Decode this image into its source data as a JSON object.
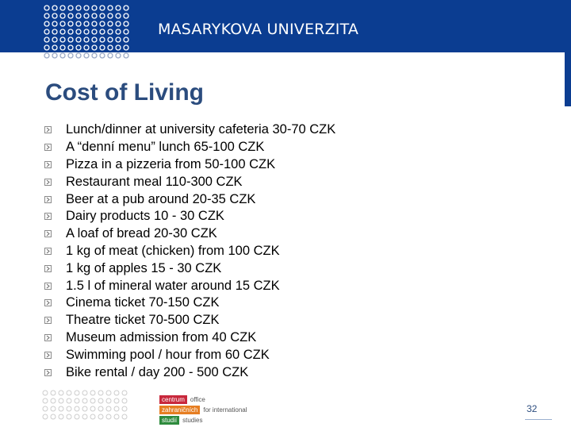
{
  "header": {
    "brand": "MASARYKOVA UNIVERZITA",
    "accent_color": "#0b3d91"
  },
  "title": "Cost of Living",
  "items": [
    "Lunch/dinner at university cafeteria 30-70 CZK",
    "A “denní menu” lunch 65-100 CZK",
    "Pizza in a pizzeria from 50-100 CZK",
    "Restaurant meal 110-300 CZK",
    "Beer at a pub around 20-35 CZK",
    "Dairy products 10 - 30 CZK",
    "A loaf of bread 20-30 CZK",
    "1 kg of meat (chicken) from 100 CZK",
    "1 kg of apples 15 - 30 CZK",
    "1.5 l of mineral water around 15 CZK",
    "Cinema ticket 70-150 CZK",
    "Theatre ticket 70-500 CZK",
    "Museum admission from 40 CZK",
    "Swimming pool / hour from 60 CZK",
    "Bike rental / day 200 - 500 CZK"
  ],
  "footer": {
    "logo_rows": [
      {
        "box": "centrum",
        "text": "office",
        "color": "#c8283c"
      },
      {
        "box": "zahraničních",
        "text": "for international",
        "color": "#e67e22"
      },
      {
        "box": "studií",
        "text": "studies",
        "color": "#2e8b3d"
      }
    ],
    "page_number": "32"
  }
}
